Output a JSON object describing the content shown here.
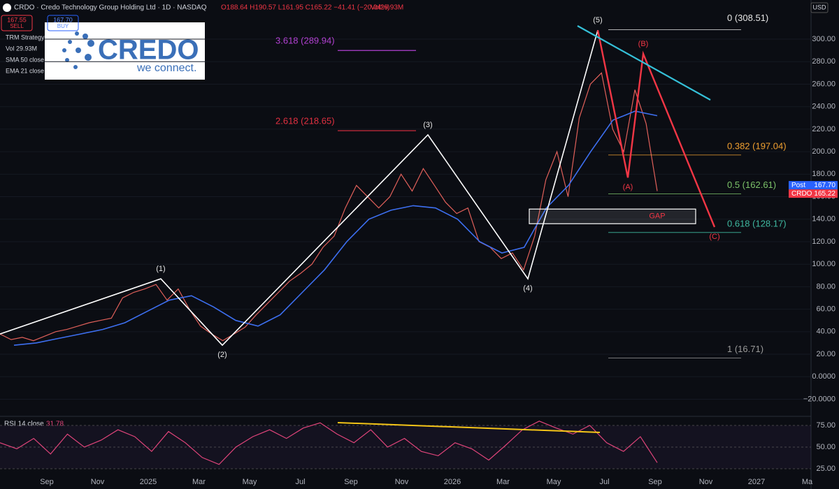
{
  "chart_data": {
    "type": "line",
    "header": {
      "symbol": "CRDO · Credo Technology Group Holding Ltd · 1D · NASDAQ",
      "ohlc": "O188.64 H190.57 L161.95 C165.22 −41.41 (−20.04%)",
      "volume": "Vol29.93M",
      "sell_price": "167.55",
      "sell": "SELL",
      "buy_price": "167.70",
      "buy": "BUY",
      "currency": "USD"
    },
    "indicators": [
      "TRM Strategy",
      "Vol 29.93M",
      "SMA 50 close",
      "EMA 21 close"
    ],
    "logo": {
      "name": "CREDO",
      "tagline": "we connect."
    },
    "ylim": [
      -34.6,
      334.8
    ],
    "yticks": [
      {
        "value": 300,
        "label": "300.00"
      },
      {
        "value": 280,
        "label": "280.00"
      },
      {
        "value": 260,
        "label": "260.00"
      },
      {
        "value": 240,
        "label": "240.00"
      },
      {
        "value": 220,
        "label": "220.00"
      },
      {
        "value": 200,
        "label": "200.00"
      },
      {
        "value": 180,
        "label": "180.00"
      },
      {
        "value": 160,
        "label": "160.00"
      },
      {
        "value": 140,
        "label": "140.00"
      },
      {
        "value": 120,
        "label": "120.00"
      },
      {
        "value": 100,
        "label": "100.00"
      },
      {
        "value": 80,
        "label": "80.00"
      },
      {
        "value": 60,
        "label": "60.00"
      },
      {
        "value": 40,
        "label": "40.00"
      },
      {
        "value": 20,
        "label": "20.00"
      },
      {
        "value": 0,
        "label": "0.0000"
      },
      {
        "value": -20,
        "label": "−20.0000"
      }
    ],
    "x_labels": [
      "Sep",
      "Nov",
      "2025",
      "Mar",
      "May",
      "Jul",
      "Sep",
      "Nov",
      "2026",
      "Mar",
      "May",
      "Jul",
      "Sep",
      "Nov",
      "2027",
      "Ma"
    ],
    "series": [
      {
        "name": "CRDO",
        "color": "#e0605a",
        "values": [
          38,
          33,
          35,
          32,
          36,
          40,
          42,
          45,
          48,
          50,
          52,
          70,
          75,
          78,
          82,
          68,
          78,
          60,
          45,
          38,
          32,
          38,
          44,
          55,
          65,
          75,
          85,
          92,
          100,
          115,
          125,
          150,
          170,
          160,
          150,
          160,
          180,
          165,
          185,
          170,
          155,
          145,
          150,
          120,
          115,
          105,
          110,
          95,
          125,
          175,
          200,
          160,
          230,
          260,
          270,
          220,
          200,
          255,
          225,
          165
        ]
      },
      {
        "name": "SMA 50 close",
        "color": "#3d6ff0",
        "values": [
          28,
          30,
          34,
          38,
          42,
          48,
          58,
          68,
          72,
          62,
          50,
          45,
          55,
          75,
          95,
          120,
          140,
          148,
          152,
          150,
          140,
          120,
          110,
          115,
          150,
          170,
          200,
          228,
          236,
          232
        ]
      }
    ],
    "waves": [
      {
        "label": "(1)",
        "value": 87
      },
      {
        "label": "(2)",
        "value": 28
      },
      {
        "label": "(3)",
        "value": 215
      },
      {
        "label": "(4)",
        "value": 87
      },
      {
        "label": "(5)",
        "value": 308
      }
    ],
    "wave_start": 38,
    "corrective": [
      {
        "label": "(A)",
        "value": 177
      },
      {
        "label": "(B)",
        "value": 287
      },
      {
        "label": "(C)",
        "value": 133
      }
    ],
    "fib_levels": [
      {
        "value": 308.51,
        "label": "0 (308.51)",
        "color": "#e6e6e6"
      },
      {
        "value": 197.04,
        "label": "0.382 (197.04)",
        "color": "#f0a030"
      },
      {
        "value": 162.61,
        "label": "0.5 (162.61)",
        "color": "#7cc36a"
      },
      {
        "value": 128.17,
        "label": "0.618 (128.17)",
        "color": "#3fb8a0"
      },
      {
        "value": 16.71,
        "label": "1 (16.71)",
        "color": "#9a9a9a"
      }
    ],
    "extensions": [
      {
        "value": 289.94,
        "label": "3.618 (289.94)",
        "color": "#b040d0"
      },
      {
        "value": 218.65,
        "label": "2.618 (218.65)",
        "color": "#e03040"
      }
    ],
    "gap": {
      "label": "GAP",
      "top": 149,
      "bottom": 136
    },
    "price_labels": [
      {
        "name": "Post",
        "value": 167.7,
        "label": "167.70",
        "color": "#2962ff"
      },
      {
        "name": "CRDO",
        "value": 165.22,
        "label": "165.22",
        "color": "#f23645"
      }
    ],
    "rsi": {
      "title": "RSI 14 close",
      "last": "31.78",
      "color": "#e0447a",
      "ylim": [
        17.7,
        84.7
      ],
      "yticks": [
        {
          "value": 75,
          "label": "75.00"
        },
        {
          "value": 50,
          "label": "50.00"
        },
        {
          "value": 25,
          "label": "25.00"
        }
      ],
      "values": [
        55,
        48,
        60,
        42,
        65,
        50,
        58,
        70,
        62,
        45,
        68,
        55,
        38,
        30,
        50,
        62,
        70,
        60,
        72,
        78,
        65,
        55,
        70,
        50,
        60,
        45,
        40,
        55,
        48,
        35,
        52,
        70,
        80,
        72,
        65,
        75,
        55,
        45,
        62,
        32
      ]
    }
  }
}
